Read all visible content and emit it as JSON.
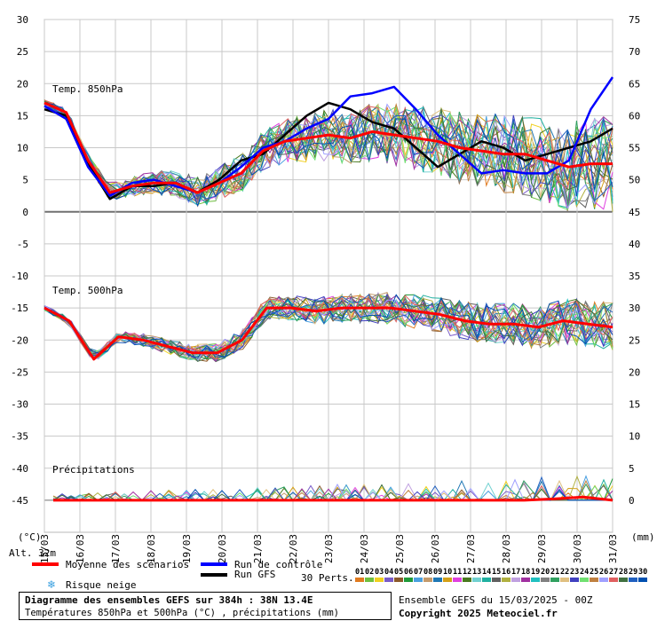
{
  "chart_data": {
    "type": "line",
    "x_labels": [
      "15/03",
      "16/03",
      "17/03",
      "18/03",
      "19/03",
      "20/03",
      "21/03",
      "22/03",
      "23/03",
      "24/03",
      "25/03",
      "26/03",
      "27/03",
      "28/03",
      "29/03",
      "30/03",
      "31/03"
    ],
    "left_axis": {
      "unit": "(°C)",
      "ticks": [
        30,
        25,
        20,
        15,
        10,
        5,
        0,
        -5,
        -10,
        -15,
        -20,
        -25,
        -30,
        -35,
        -40,
        -45
      ],
      "range": [
        -50,
        30
      ]
    },
    "right_axis": {
      "unit": "(mm)",
      "ticks": [
        75,
        70,
        65,
        60,
        55,
        50,
        45,
        40,
        35,
        30,
        25,
        20,
        15,
        10,
        5,
        0
      ],
      "range": [
        -5,
        75
      ]
    },
    "panels": {
      "t850_label": "Temp. 850hPa",
      "t500_label": "Temp. 500hPa",
      "precip_label": "Précipitations"
    },
    "series": [
      {
        "name": "Moyenne des scénarios",
        "color": "#ff0000",
        "t850": [
          17,
          15.5,
          8,
          3,
          4,
          4.5,
          4.5,
          3,
          4.5,
          6,
          9.5,
          11,
          11.5,
          12,
          11.5,
          12.5,
          12,
          11.5,
          11,
          10,
          9.5,
          9,
          9,
          8,
          7,
          7.5,
          7.5
        ],
        "t500": [
          -15,
          -17,
          -23,
          -19.5,
          -20,
          -21,
          -22,
          -22,
          -20,
          -15,
          -15,
          -15.5,
          -15,
          -15,
          -15,
          -15.5,
          -16,
          -17,
          -17.5,
          -17.5,
          -18,
          -17,
          -17.5,
          -18
        ],
        "precip": [
          0,
          0,
          0,
          0,
          0,
          0,
          0,
          0,
          0,
          0,
          0,
          0,
          0,
          0,
          0,
          0,
          0,
          0.2,
          0.5,
          0
        ]
      },
      {
        "name": "Run de contrôle",
        "color": "#0000ff",
        "t850": [
          16.5,
          14.5,
          7,
          2.5,
          4.5,
          5,
          4,
          3,
          4.5,
          7,
          10,
          11,
          13,
          14.5,
          18,
          18.5,
          19.5,
          16,
          12,
          9,
          6,
          6.5,
          6,
          6,
          8,
          16,
          21
        ]
      },
      {
        "name": "Run GFS",
        "color": "#000000",
        "t850": [
          16,
          15,
          7.5,
          2,
          4,
          4,
          4.5,
          3,
          5,
          8,
          9,
          12,
          15,
          17,
          16,
          14,
          13,
          10,
          7,
          9,
          11,
          10,
          8,
          9,
          10,
          11,
          13
        ]
      }
    ],
    "ensemble_count": "30 Perts.",
    "perturbation_ids": [
      "01",
      "02",
      "03",
      "04",
      "05",
      "06",
      "07",
      "08",
      "09",
      "10",
      "11",
      "12",
      "13",
      "14",
      "15",
      "16",
      "17",
      "18",
      "19",
      "20",
      "21",
      "22",
      "23",
      "24",
      "25",
      "26",
      "27",
      "28",
      "29",
      "30"
    ],
    "perturbation_colors": [
      "#e07a1f",
      "#6fbf3f",
      "#f0d020",
      "#7a5cc8",
      "#8b5a2b",
      "#1f9a3a",
      "#4aa0e0",
      "#c49a6c",
      "#1f77b4",
      "#d4a017",
      "#e040e0",
      "#4a7a1f",
      "#70d0d0",
      "#20b0a0",
      "#606060",
      "#b0b040",
      "#c0a0e0",
      "#a030a0",
      "#20c0c0",
      "#808080",
      "#30a060",
      "#e0c080",
      "#4040c0",
      "#70e070",
      "#c08040",
      "#a0a0ff",
      "#e06060",
      "#407040",
      "#2060c0",
      "#0050b0"
    ]
  },
  "legend": {
    "alt": "Alt. 32m",
    "mean": "Moyenne des scénarios",
    "control": "Run de contrôle",
    "gfs": "Run GFS",
    "snow": "Risque neige",
    "perts": "30 Perts."
  },
  "footer": {
    "title": "Diagramme des ensembles GEFS sur 384h : 38N 13.4E",
    "subtitle": "Températures 850hPa et 500hPa (°C) , précipitations (mm)",
    "run": "Ensemble GEFS du 15/03/2025 - 00Z",
    "copyright": "Copyright 2025 Meteociel.fr"
  }
}
